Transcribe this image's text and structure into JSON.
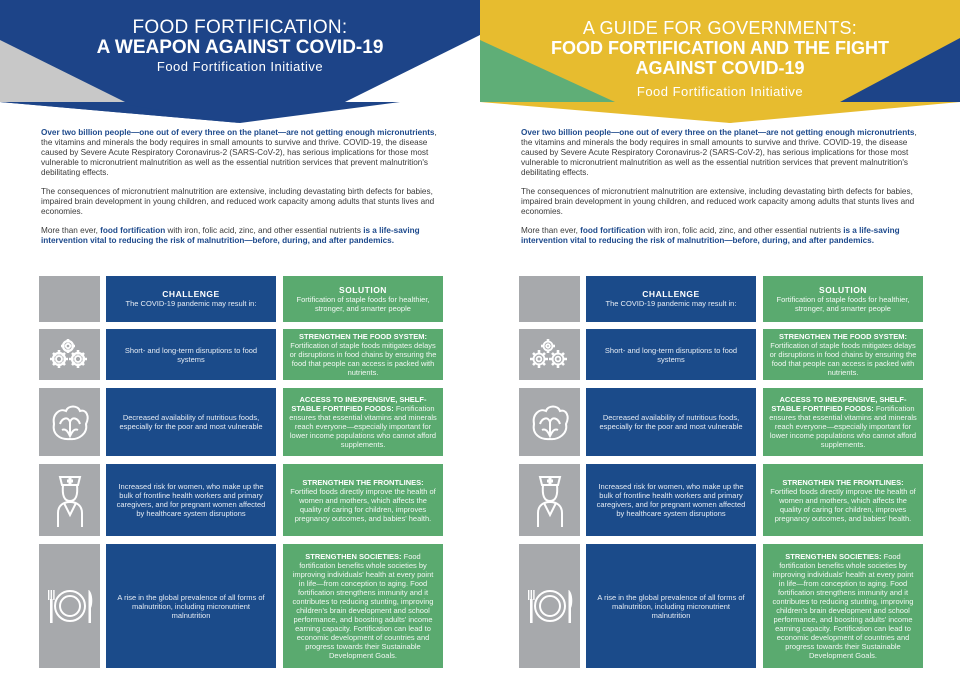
{
  "pages": [
    {
      "title_line1": "FOOD FORTIFICATION:",
      "title_line2": "A WEAPON AGAINST COVID-19",
      "title_line3": "",
      "subtitle": "Food Fortification Initiative"
    },
    {
      "title_line1": "A GUIDE FOR GOVERNMENTS:",
      "title_line2": "FOOD FORTIFICATION AND THE FIGHT",
      "title_line3": "AGAINST COVID-19",
      "subtitle": "Food Fortification Initiative"
    }
  ],
  "intro": {
    "p1_bold": "Over two billion people—one out of every three on the planet—are not getting enough micronutrients",
    "p1_rest": ", the vitamins and minerals the body requires in small amounts to survive and thrive. COVID-19, the disease caused by Severe Acute Respiratory Coronavirus-2 (SARS-CoV-2), has serious implications for those most vulnerable to micronutrient malnutrition as well as the essential nutrition services that prevent malnutrition's debilitating effects.",
    "p2": "The consequences of micronutrient malnutrition are extensive, including devastating birth defects for babies, impaired brain development in young children, and reduced work capacity among adults that stunts lives and economies.",
    "p3_a": "More than ever, ",
    "p3_bold1": "food fortification",
    "p3_b": " with iron, folic acid, zinc, and other essential nutrients ",
    "p3_bold2": "is a life-saving intervention vital to reducing the risk of malnutrition—before, during, and after pandemics."
  },
  "table": {
    "challenge_header": "CHALLENGE",
    "challenge_sub": "The COVID-19 pandemic may result in:",
    "solution_header": "SOLUTION",
    "solution_sub": "Fortification of staple foods for healthier, stronger, and smarter people",
    "rows": [
      {
        "icon": "gears-icon",
        "challenge": "Short- and long-term disruptions to food systems",
        "solution_bold": "STRENGTHEN THE FOOD SYSTEM:",
        "solution_text": " Fortification of staple foods mitigates delays or disruptions in food chains by ensuring the food that people can access is packed with nutrients."
      },
      {
        "icon": "cabbage-icon",
        "challenge": "Decreased availability of nutritious foods, especially for the poor and most vulnerable",
        "solution_bold": "ACCESS TO INEXPENSIVE, SHELF-STABLE FORTIFIED FOODS:",
        "solution_text": " Fortification ensures that essential vitamins and minerals reach everyone—especially important for lower income populations who cannot afford supplements."
      },
      {
        "icon": "nurse-icon",
        "challenge": "Increased risk for women, who make up the bulk of frontline health workers and primary caregivers, and for pregnant women affected by healthcare system disruptions",
        "solution_bold": "STRENGTHEN THE FRONTLINES:",
        "solution_text": " Fortified foods directly improve the health of women and mothers, which affects the quality of caring for children, improves pregnancy outcomes, and babies' health."
      },
      {
        "icon": "plate-icon",
        "challenge": "A rise in the global prevalence of all forms of malnutrition, including micronutrient malnutrition",
        "solution_bold": "STRENGTHEN SOCIETIES:",
        "solution_text": " Food fortification benefits whole societies by improving individuals' health at every point in life—from conception to aging. Food fortification strengthens immunity and it contributes to reducing stunting, improving children's brain development and school performance, and boosting adults' income earning capacity. Fortification can lead to economic development of countries and progress towards their Sustainable Development Goals."
      }
    ]
  },
  "colors": {
    "navy": "#1b4b8a",
    "green": "#5aaa6f",
    "gray": "#a7a9ac",
    "yellow": "#e7bc2f",
    "banner_green": "#5fae77",
    "banner_navy": "#1d4488",
    "banner_gray": "#c8c8c8"
  }
}
